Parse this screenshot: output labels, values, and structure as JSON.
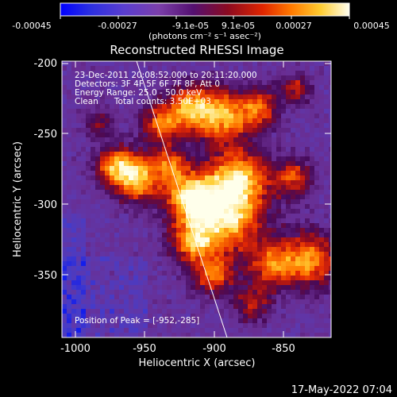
{
  "colorbar": {
    "tick_labels": [
      "-0.00045",
      "-0.00027",
      "-9.1e-05",
      "9.1e-05",
      "0.00027",
      "0.00045"
    ],
    "units_label": "(photons cm⁻² s⁻¹ asec⁻²)",
    "range": [
      -0.00045,
      0.00045
    ]
  },
  "plot": {
    "title": "Reconstructed RHESSI Image",
    "xlabel": "Heliocentric X (arcsec)",
    "ylabel": "Heliocentric Y (arcsec)",
    "x_tick_labels": [
      "-1000",
      "-950",
      "-900",
      "-850"
    ],
    "y_tick_labels": [
      "-200",
      "-250",
      "-300",
      "-350"
    ],
    "xlim": [
      -1010,
      -816
    ],
    "ylim": [
      -392,
      -198
    ],
    "info_lines": [
      "23-Dec-2011 20:08:52.000 to 20:11:20.000",
      "Detectors: 3F 4F 5F 6F 7F 8F, Att 0",
      "Energy Range: 25.0 - 50.0 keV",
      "Clean      Total counts: 3.50E+03"
    ],
    "peak_label": "Position of Peak = [-952,-285]",
    "peak_position": [
      -952,
      -285
    ]
  },
  "footer": {
    "date_label": "17-May-2022 07:04"
  },
  "colors": {
    "background": "#000000",
    "foreground": "#ffffff",
    "limb_line": "#ffffff"
  }
}
